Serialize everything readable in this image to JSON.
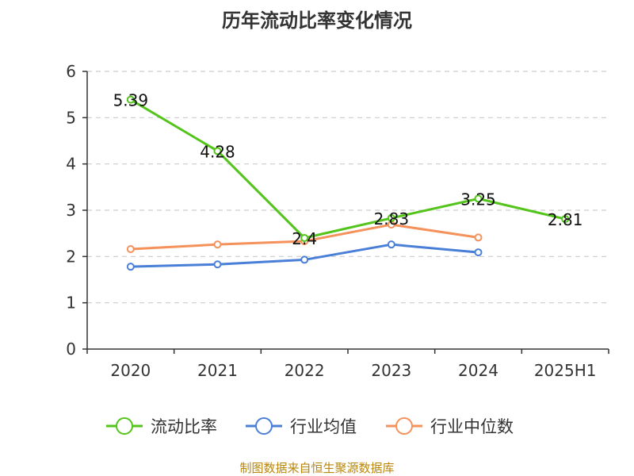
{
  "chart_data": {
    "type": "line",
    "title": "历年流动比率变化情况",
    "categories": [
      "2020",
      "2021",
      "2022",
      "2023",
      "2024",
      "2025H1"
    ],
    "ylim": [
      0,
      6
    ],
    "yticks": [
      0,
      1,
      2,
      3,
      4,
      5,
      6
    ],
    "grid": "horizontal-dashed",
    "legend_position": "bottom",
    "series": [
      {
        "name": "流动比率",
        "color": "#52c41a",
        "values": [
          5.39,
          4.28,
          2.4,
          2.83,
          3.25,
          2.81
        ],
        "labels": [
          "5.39",
          "4.28",
          "2.4",
          "2.83",
          "3.25",
          "2.81"
        ]
      },
      {
        "name": "行业均值",
        "color": "#4a7fd8",
        "values": [
          1.78,
          1.83,
          1.93,
          2.26,
          2.09,
          null
        ]
      },
      {
        "name": "行业中位数",
        "color": "#f5915b",
        "values": [
          2.16,
          2.26,
          2.33,
          2.69,
          2.41,
          null
        ]
      }
    ]
  },
  "source": "制图数据来自恒生聚源数据库"
}
